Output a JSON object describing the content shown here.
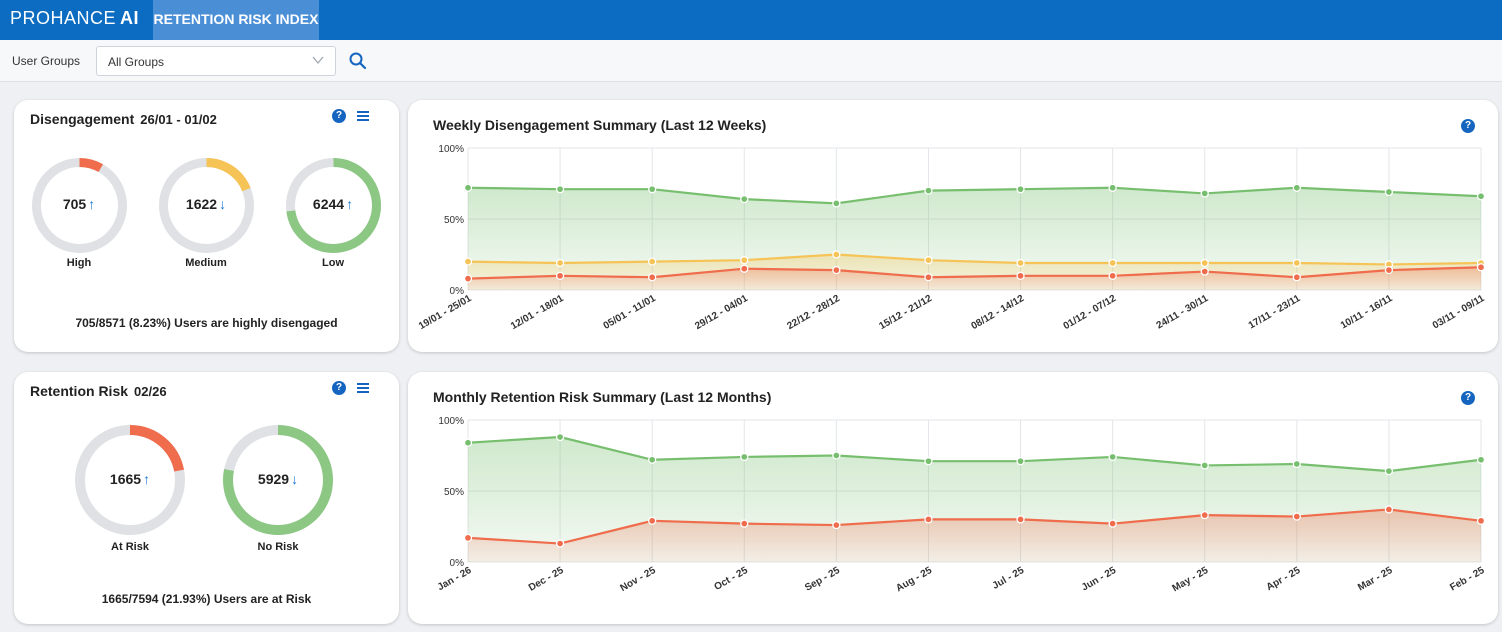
{
  "header": {
    "logo_text": "PROHANCE",
    "logo_ai": "AI",
    "tab_label": "RETENTION RISK INDEX"
  },
  "filter": {
    "label": "User Groups",
    "selected": "All Groups"
  },
  "disengagement": {
    "title": "Disengagement",
    "period": "26/01 - 01/02",
    "summary": "705/8571 (8.23%) Users are highly disengaged",
    "items": [
      {
        "value": "705",
        "arrow": "↑",
        "label": "High",
        "fraction": 0.0823,
        "color": "#ef6c4c"
      },
      {
        "value": "1622",
        "arrow": "↓",
        "label": "Medium",
        "fraction": 0.1892,
        "color": "#f6c356"
      },
      {
        "value": "6244",
        "arrow": "↑",
        "label": "Low",
        "fraction": 0.7285,
        "color": "#8cc784"
      }
    ]
  },
  "retention": {
    "title": "Retention Risk",
    "period": "02/26",
    "summary": "1665/7594 (21.93%) Users are at Risk",
    "items": [
      {
        "value": "1665",
        "arrow": "↑",
        "label": "At Risk",
        "fraction": 0.2193,
        "color": "#ef6c4c"
      },
      {
        "value": "5929",
        "arrow": "↓",
        "label": "No Risk",
        "fraction": 0.7807,
        "color": "#8cc784"
      }
    ]
  },
  "colors": {
    "green": "#77bf6f",
    "yellow": "#f6c356",
    "red": "#ef6c4c",
    "accent": "#1565c0"
  },
  "weekly_chart": {
    "type": "area",
    "title": "Weekly Disengagement Summary (Last 12 Weeks)",
    "y_ticks": [
      "100%",
      "50%",
      "0%"
    ],
    "ylim": [
      0,
      100
    ],
    "categories": [
      "19/01 - 25/01",
      "12/01 - 18/01",
      "05/01 - 11/01",
      "29/12 - 04/01",
      "22/12 - 28/12",
      "15/12 - 21/12",
      "08/12 - 14/12",
      "01/12 - 07/12",
      "24/11 - 30/11",
      "17/11 - 23/11",
      "10/11 - 16/11",
      "03/11 - 09/11"
    ],
    "series": [
      {
        "key": "low",
        "color": "#77bf6f",
        "values": [
          72,
          71,
          71,
          64,
          61,
          70,
          71,
          72,
          68,
          72,
          69,
          66
        ]
      },
      {
        "key": "medium",
        "color": "#f6c356",
        "values": [
          20,
          19,
          20,
          21,
          25,
          21,
          19,
          19,
          19,
          19,
          18,
          19
        ]
      },
      {
        "key": "high",
        "color": "#ef6c4c",
        "values": [
          8,
          10,
          9,
          15,
          14,
          9,
          10,
          10,
          13,
          9,
          14,
          16
        ]
      }
    ]
  },
  "monthly_chart": {
    "type": "area",
    "title": "Monthly Retention Risk Summary (Last 12 Months)",
    "y_ticks": [
      "100%",
      "50%",
      "0%"
    ],
    "ylim": [
      0,
      100
    ],
    "categories": [
      "Jan - 26",
      "Dec - 25",
      "Nov - 25",
      "Oct - 25",
      "Sep - 25",
      "Aug - 25",
      "Jul - 25",
      "Jun - 25",
      "May - 25",
      "Apr - 25",
      "Mar - 25",
      "Feb - 25"
    ],
    "series": [
      {
        "key": "no_risk",
        "color": "#77bf6f",
        "values": [
          84,
          88,
          72,
          74,
          75,
          71,
          71,
          74,
          68,
          69,
          64,
          72
        ]
      },
      {
        "key": "at_risk",
        "color": "#ef6c4c",
        "values": [
          17,
          13,
          29,
          27,
          26,
          30,
          30,
          27,
          33,
          32,
          37,
          29
        ]
      }
    ]
  }
}
